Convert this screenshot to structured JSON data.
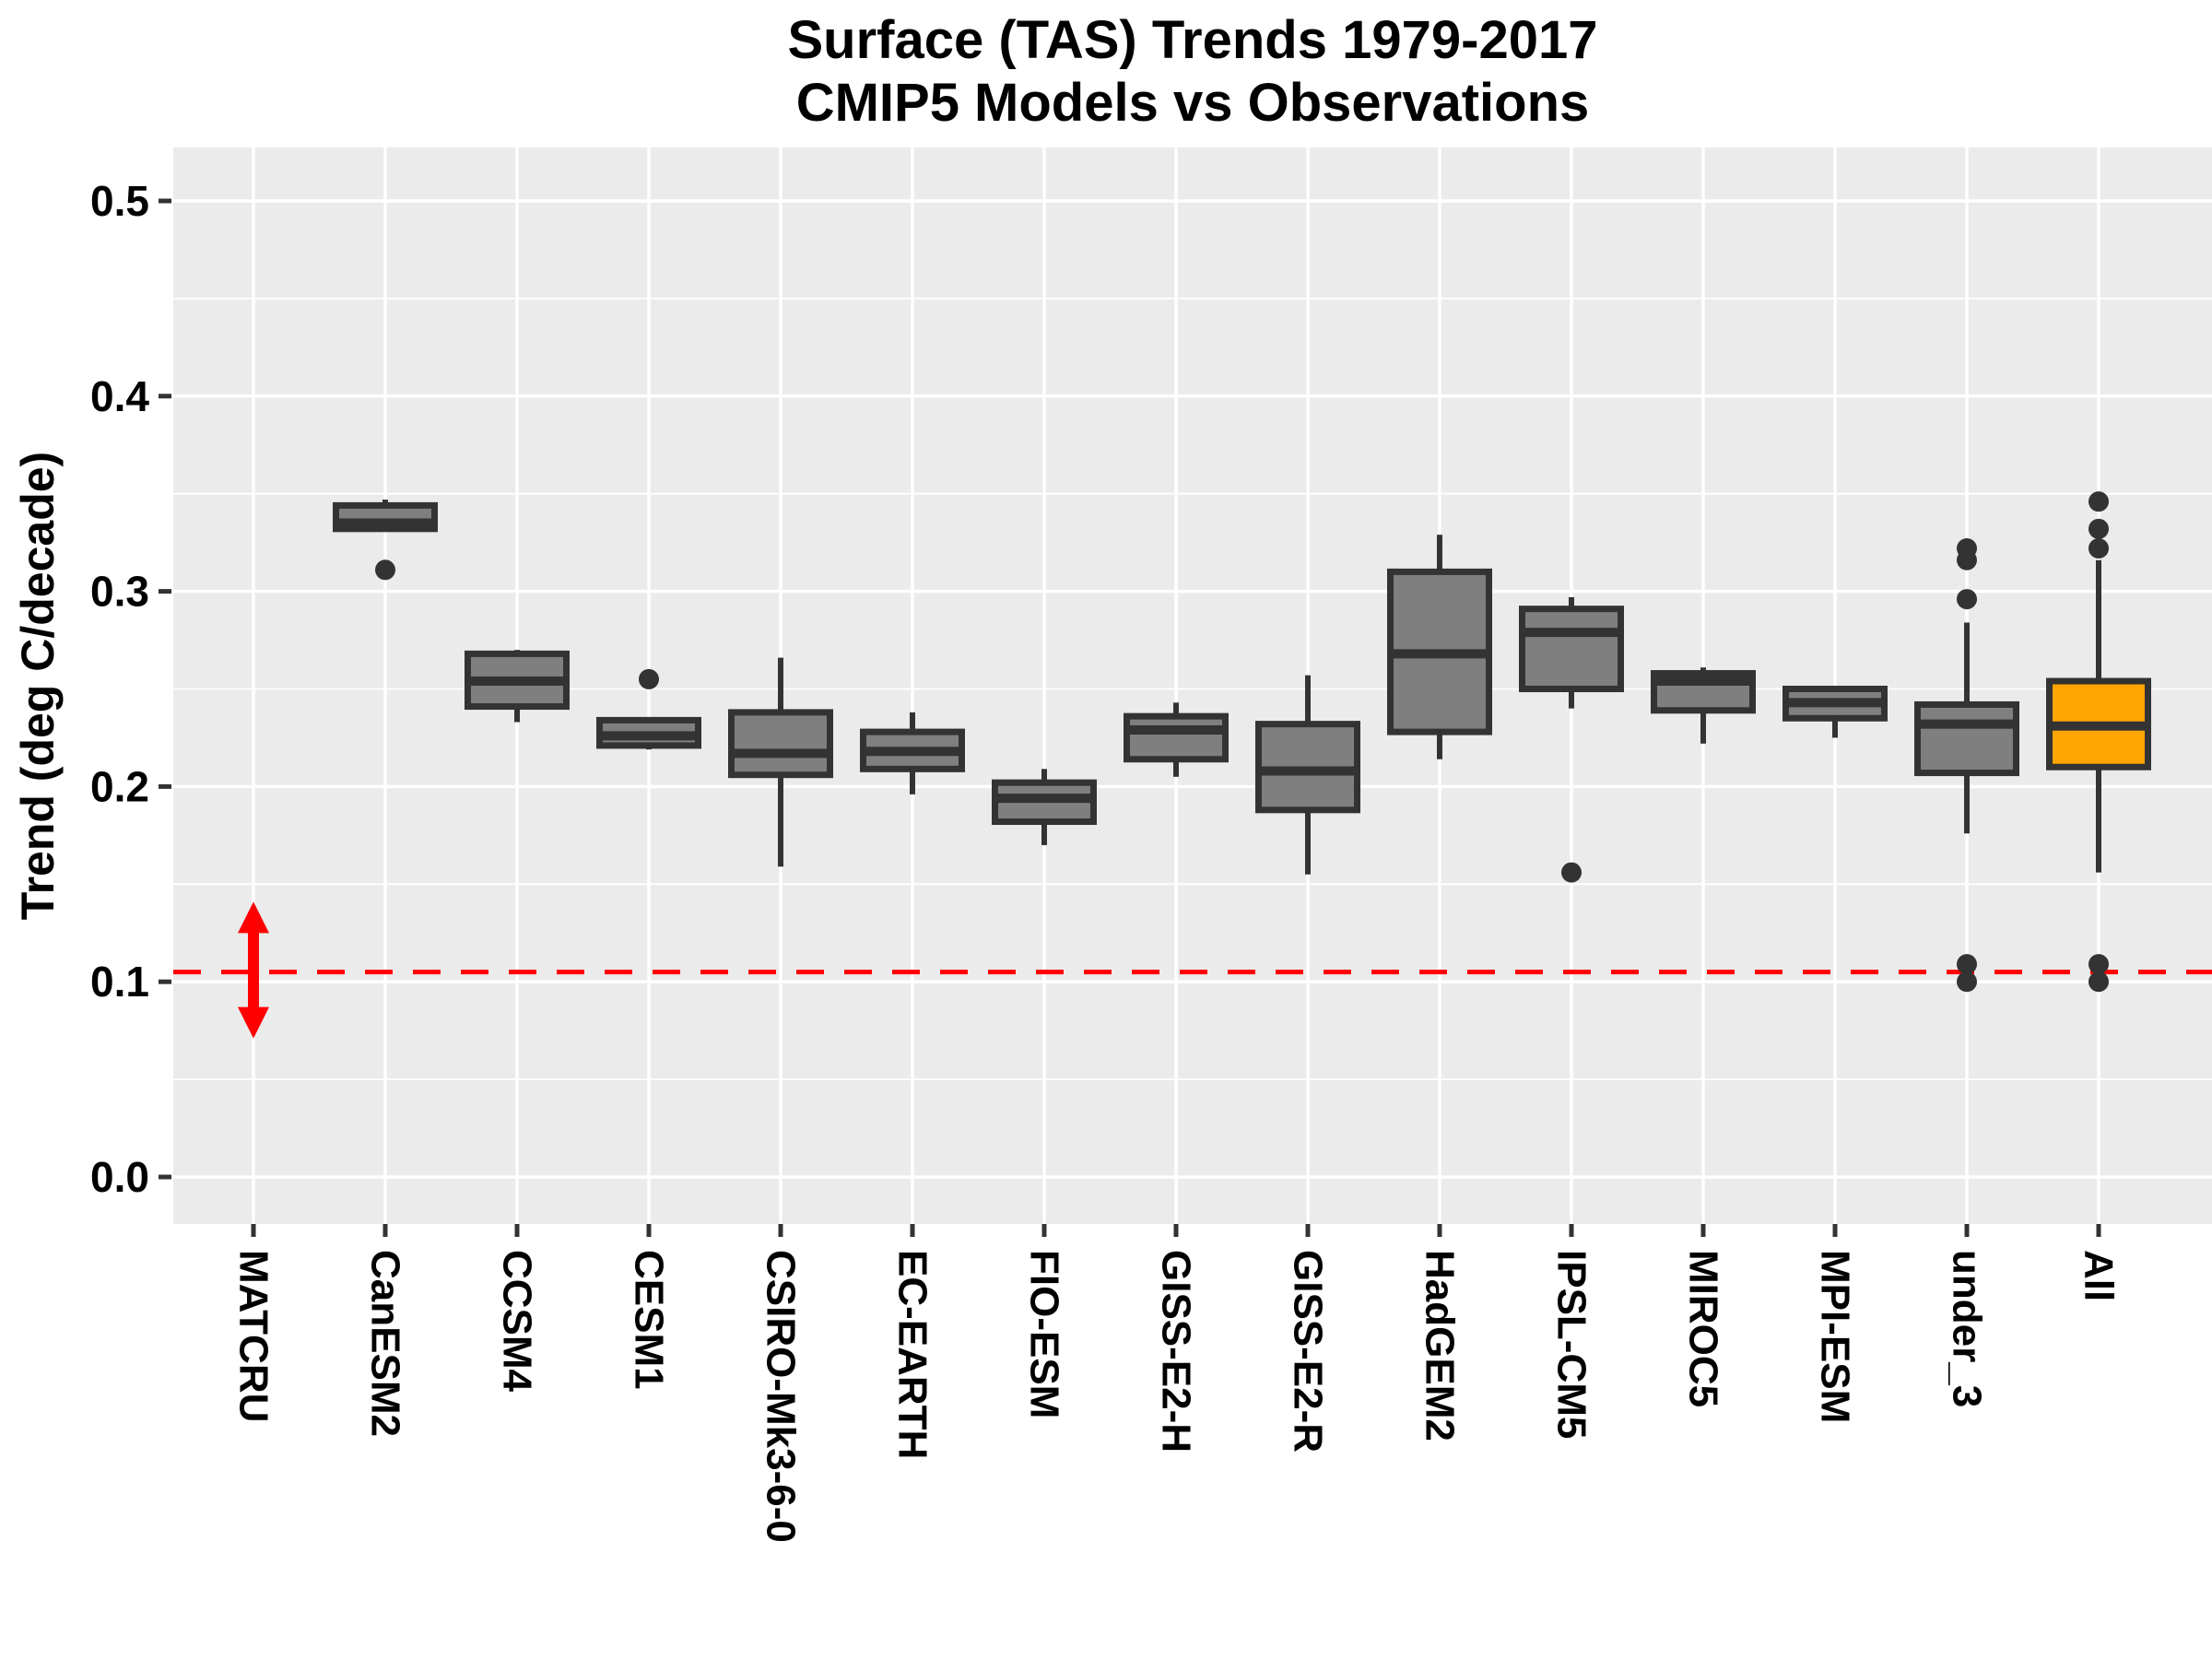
{
  "chart_data": {
    "type": "boxplot",
    "title_line1": "Surface (TAS) Trends 1979-2017",
    "title_line2": "CMIP5 Models vs Observations",
    "ylabel": "Trend (deg C/decade)",
    "xlabel": "",
    "ylim": [
      -0.024,
      0.527
    ],
    "yticks": [
      0.0,
      0.1,
      0.2,
      0.3,
      0.4,
      0.5
    ],
    "ytick_labels": [
      "0.0",
      "0.1",
      "0.2",
      "0.3",
      "0.4",
      "0.5"
    ],
    "minor_grid_step": 0.05,
    "grid": "on",
    "legend": "none",
    "categories": [
      "MATCRU",
      "CanESM2",
      "CCSM4",
      "CESM1",
      "CSIRO-Mk3-6-0",
      "EC-EARTH",
      "FIO-ESM",
      "GISS-E2-H",
      "GISS-E2-R",
      "HadGEM2",
      "IPSL-CM5",
      "MIROC5",
      "MPI-ESM",
      "under_3",
      "All"
    ],
    "boxes": [
      {
        "name": "MATCRU",
        "box": null
      },
      {
        "name": "CanESM2",
        "box": {
          "q1": 0.332,
          "median": 0.335,
          "q3": 0.344,
          "whisker_low": 0.331,
          "whisker_high": 0.347,
          "outliers": [
            0.311
          ],
          "fill": "#7F7F7F"
        }
      },
      {
        "name": "CCSM4",
        "box": {
          "q1": 0.241,
          "median": 0.254,
          "q3": 0.268,
          "whisker_low": 0.233,
          "whisker_high": 0.27,
          "outliers": [],
          "fill": "#7F7F7F"
        }
      },
      {
        "name": "CESM1",
        "box": {
          "q1": 0.221,
          "median": 0.226,
          "q3": 0.234,
          "whisker_low": 0.219,
          "whisker_high": 0.235,
          "outliers": [
            0.255
          ],
          "fill": "#7F7F7F"
        }
      },
      {
        "name": "CSIRO-Mk3-6-0",
        "box": {
          "q1": 0.206,
          "median": 0.217,
          "q3": 0.238,
          "whisker_low": 0.159,
          "whisker_high": 0.266,
          "outliers": [],
          "fill": "#7F7F7F"
        }
      },
      {
        "name": "EC-EARTH",
        "box": {
          "q1": 0.209,
          "median": 0.218,
          "q3": 0.228,
          "whisker_low": 0.196,
          "whisker_high": 0.238,
          "outliers": [],
          "fill": "#7F7F7F"
        }
      },
      {
        "name": "FIO-ESM",
        "box": {
          "q1": 0.182,
          "median": 0.194,
          "q3": 0.202,
          "whisker_low": 0.17,
          "whisker_high": 0.209,
          "outliers": [],
          "fill": "#7F7F7F"
        }
      },
      {
        "name": "GISS-E2-H",
        "box": {
          "q1": 0.214,
          "median": 0.229,
          "q3": 0.236,
          "whisker_low": 0.205,
          "whisker_high": 0.243,
          "outliers": [],
          "fill": "#7F7F7F"
        }
      },
      {
        "name": "GISS-E2-R",
        "box": {
          "q1": 0.188,
          "median": 0.208,
          "q3": 0.232,
          "whisker_low": 0.155,
          "whisker_high": 0.257,
          "outliers": [],
          "fill": "#7F7F7F"
        }
      },
      {
        "name": "HadGEM2",
        "box": {
          "q1": 0.228,
          "median": 0.268,
          "q3": 0.31,
          "whisker_low": 0.214,
          "whisker_high": 0.329,
          "outliers": [],
          "fill": "#7F7F7F"
        }
      },
      {
        "name": "IPSL-CM5",
        "box": {
          "q1": 0.25,
          "median": 0.279,
          "q3": 0.291,
          "whisker_low": 0.24,
          "whisker_high": 0.297,
          "outliers": [
            0.156
          ],
          "fill": "#7F7F7F"
        }
      },
      {
        "name": "MIROC5",
        "box": {
          "q1": 0.239,
          "median": 0.254,
          "q3": 0.258,
          "whisker_low": 0.222,
          "whisker_high": 0.261,
          "outliers": [],
          "fill": "#7F7F7F"
        }
      },
      {
        "name": "MPI-ESM",
        "box": {
          "q1": 0.235,
          "median": 0.243,
          "q3": 0.25,
          "whisker_low": 0.225,
          "whisker_high": 0.251,
          "outliers": [],
          "fill": "#7F7F7F"
        }
      },
      {
        "name": "under_3",
        "box": {
          "q1": 0.207,
          "median": 0.232,
          "q3": 0.242,
          "whisker_low": 0.176,
          "whisker_high": 0.284,
          "outliers": [
            0.322,
            0.316,
            0.296,
            0.109,
            0.1
          ],
          "fill": "#7F7F7F"
        }
      },
      {
        "name": "All",
        "box": {
          "q1": 0.21,
          "median": 0.231,
          "q3": 0.254,
          "whisker_low": 0.156,
          "whisker_high": 0.316,
          "outliers": [
            0.346,
            0.332,
            0.322,
            0.109,
            0.1
          ],
          "fill": "#FFA500"
        }
      }
    ],
    "observation_arrow": {
      "category": "MATCRU",
      "low": 0.071,
      "high": 0.141,
      "color": "#FF0000"
    },
    "reference_line": {
      "value": 0.105,
      "style": "dashed",
      "color": "#FF0000"
    },
    "colors": {
      "panel_background": "#EBEBEB",
      "gridline": "#FFFFFF",
      "box_border": "#333333",
      "box_fill_default": "#7F7F7F",
      "box_fill_highlight": "#FFA500",
      "outlier": "#333333",
      "axis_text": "#000000",
      "tick_mark": "#333333"
    }
  }
}
